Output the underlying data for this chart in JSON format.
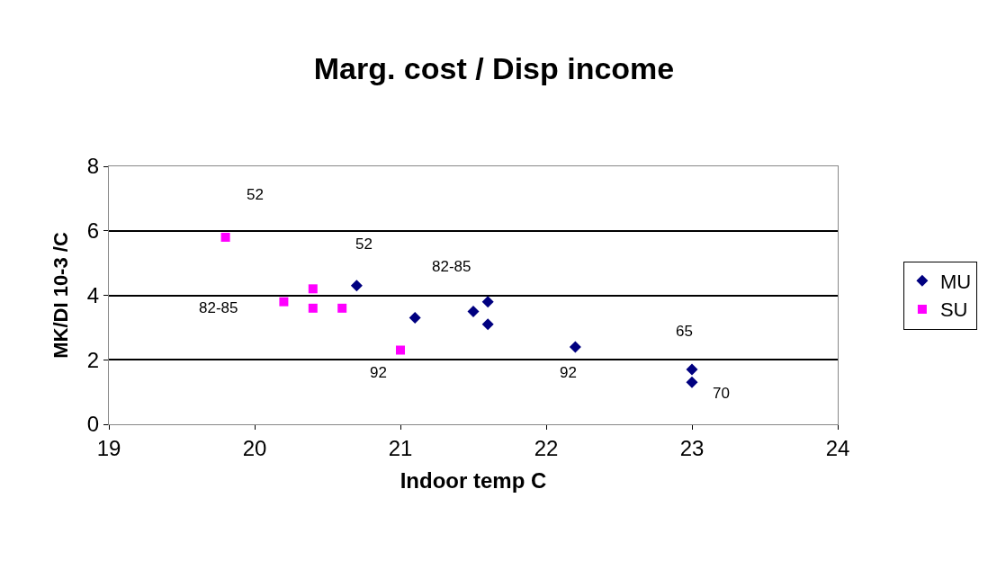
{
  "chart_data": {
    "type": "scatter",
    "title": "Marg. cost / Disp income",
    "xlabel": "Indoor temp C",
    "ylabel": "MK/DI 10-3 /C",
    "xlim": [
      19,
      24
    ],
    "xticks": [
      19,
      20,
      21,
      22,
      23,
      24
    ],
    "ylim": [
      0,
      8
    ],
    "yticks": [
      0,
      2,
      4,
      6,
      8
    ],
    "grid": "y",
    "legend": "right",
    "series": [
      {
        "name": "MU",
        "color": "#000080",
        "marker": "diamond",
        "x": [
          20.7,
          21.1,
          21.5,
          21.6,
          21.6,
          22.2,
          23.0,
          23.0
        ],
        "values": [
          4.3,
          3.3,
          3.5,
          3.8,
          3.1,
          2.4,
          1.7,
          1.3
        ]
      },
      {
        "name": "SU",
        "color": "#ff00ff",
        "marker": "square",
        "x": [
          19.8,
          20.2,
          20.4,
          20.4,
          20.6,
          21.0
        ],
        "values": [
          5.8,
          3.8,
          4.2,
          3.6,
          3.6,
          2.3
        ]
      }
    ],
    "annotations": [
      "52",
      "52",
      "82-85",
      "82-85",
      "92",
      "92",
      "65",
      "70"
    ]
  }
}
